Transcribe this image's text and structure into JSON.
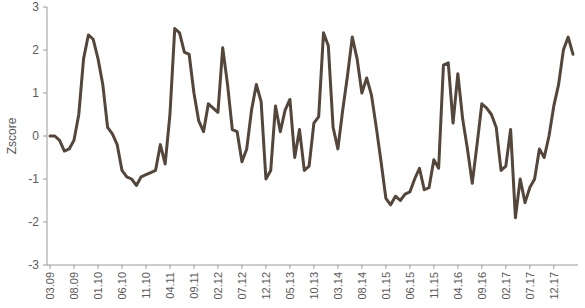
{
  "chart_data": {
    "type": "line",
    "y_label": "Zscore",
    "color": "#54463a",
    "categories": [
      "03.09",
      null,
      null,
      null,
      null,
      "08.09",
      null,
      null,
      null,
      null,
      "01.10",
      null,
      null,
      null,
      null,
      "06.10",
      null,
      null,
      null,
      null,
      "11.10",
      null,
      null,
      null,
      null,
      "04.11",
      null,
      null,
      null,
      null,
      "09.11",
      null,
      null,
      null,
      null,
      "02.12",
      null,
      null,
      null,
      null,
      "07.12",
      null,
      null,
      null,
      null,
      "12.12",
      null,
      null,
      null,
      null,
      "05.13",
      null,
      null,
      null,
      null,
      "10.13",
      null,
      null,
      null,
      null,
      "03.14",
      null,
      null,
      null,
      null,
      "08.14",
      null,
      null,
      null,
      null,
      "01.15",
      null,
      null,
      null,
      null,
      "06.15",
      null,
      null,
      null,
      null,
      "11.15",
      null,
      null,
      null,
      null,
      "04.16",
      null,
      null,
      null,
      null,
      "09.16",
      null,
      null,
      null,
      null,
      "02.17",
      null,
      null,
      null,
      null,
      "07.17",
      null,
      null,
      null,
      null,
      "12.17",
      null,
      null,
      null,
      null
    ],
    "values": [
      0,
      0,
      -0.1,
      -0.35,
      -0.3,
      -0.1,
      0.5,
      1.8,
      2.35,
      2.25,
      1.8,
      1.2,
      0.2,
      0.05,
      -0.2,
      -0.8,
      -0.95,
      -1.0,
      -1.15,
      -0.95,
      -0.9,
      -0.85,
      -0.8,
      -0.2,
      -0.65,
      0.5,
      2.5,
      2.4,
      1.95,
      1.9,
      1.0,
      0.35,
      0.1,
      0.75,
      0.65,
      0.55,
      2.05,
      1.2,
      0.15,
      0.1,
      -0.6,
      -0.3,
      0.6,
      1.2,
      0.8,
      -1.0,
      -0.8,
      0.7,
      0.1,
      0.6,
      0.85,
      -0.5,
      0.15,
      -0.8,
      -0.7,
      0.3,
      0.45,
      2.4,
      2.1,
      0.2,
      -0.3,
      0.6,
      1.4,
      2.3,
      1.8,
      1.0,
      1.35,
      0.95,
      0.2,
      -0.6,
      -1.45,
      -1.6,
      -1.4,
      -1.5,
      -1.35,
      -1.3,
      -1.0,
      -0.75,
      -1.25,
      -1.2,
      -0.55,
      -0.75,
      1.65,
      1.7,
      0.3,
      1.45,
      0.4,
      -0.3,
      -1.1,
      -0.2,
      0.75,
      0.65,
      0.5,
      0.2,
      -0.8,
      -0.7,
      0.15,
      -1.9,
      -1.0,
      -1.55,
      -1.2,
      -1.0,
      -0.3,
      -0.5,
      0.0,
      0.7,
      1.2,
      2.0,
      2.3,
      1.9
    ],
    "ylim": [
      -3,
      3
    ],
    "yticks": [
      -3,
      -2,
      -1,
      0,
      1,
      2,
      3
    ],
    "grid": false
  }
}
